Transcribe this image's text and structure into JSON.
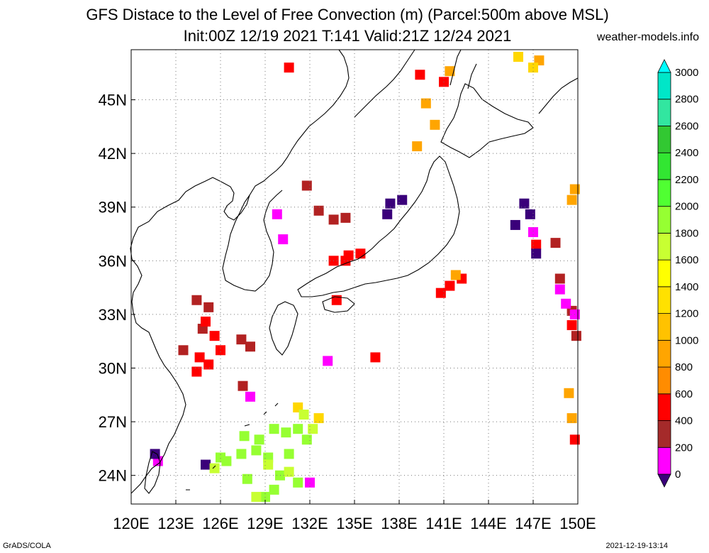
{
  "title_line1": "GFS Distace to the Level of Free Convection (m) (Parcel:500m above MSL)",
  "title_line2": "Init:00Z 12/19 2021 T:141 Valid:21Z 12/24 2021",
  "site": "weather-models.info",
  "footer_left": "GrADS/COLA",
  "footer_right": "2021-12-19-13:14",
  "map": {
    "lon_range": [
      120,
      150
    ],
    "lat_range": [
      22.4,
      47.8
    ],
    "lon_ticks": [
      {
        "value": 120,
        "label": "120E"
      },
      {
        "value": 123,
        "label": "123E"
      },
      {
        "value": 126,
        "label": "126E"
      },
      {
        "value": 129,
        "label": "129E"
      },
      {
        "value": 132,
        "label": "132E"
      },
      {
        "value": 135,
        "label": "135E"
      },
      {
        "value": 138,
        "label": "138E"
      },
      {
        "value": 141,
        "label": "141E"
      },
      {
        "value": 144,
        "label": "144E"
      },
      {
        "value": 147,
        "label": "147E"
      },
      {
        "value": 150,
        "label": "150E"
      }
    ],
    "lat_ticks": [
      {
        "value": 24,
        "label": "24N"
      },
      {
        "value": 27,
        "label": "27N"
      },
      {
        "value": 30,
        "label": "30N"
      },
      {
        "value": 33,
        "label": "33N"
      },
      {
        "value": 36,
        "label": "36N"
      },
      {
        "value": 39,
        "label": "39N"
      },
      {
        "value": 42,
        "label": "42N"
      },
      {
        "value": 45,
        "label": "45N"
      }
    ],
    "grid": true
  },
  "colorbar": {
    "labels": [
      {
        "value": 0,
        "label": "0"
      },
      {
        "value": 200,
        "label": "200"
      },
      {
        "value": 400,
        "label": "400"
      },
      {
        "value": 600,
        "label": "600"
      },
      {
        "value": 800,
        "label": "800"
      },
      {
        "value": 1000,
        "label": "1000"
      },
      {
        "value": 1200,
        "label": "1200"
      },
      {
        "value": 1400,
        "label": "1400"
      },
      {
        "value": 1600,
        "label": "1600"
      },
      {
        "value": 1800,
        "label": "1800"
      },
      {
        "value": 2000,
        "label": "2000"
      },
      {
        "value": 2200,
        "label": "2200"
      },
      {
        "value": 2400,
        "label": "2400"
      },
      {
        "value": 2600,
        "label": "2600"
      },
      {
        "value": 2800,
        "label": "2800"
      },
      {
        "value": 3000,
        "label": "3000"
      }
    ],
    "colors": [
      "#3a007a",
      "#ff00ff",
      "#a52a2a",
      "#ff0000",
      "#ff8c00",
      "#ffa500",
      "#ffc200",
      "#ffe100",
      "#ffff00",
      "#c8ff32",
      "#96ff32",
      "#50ff32",
      "#32e632",
      "#32c832",
      "#32e6a0",
      "#00e6c8",
      "#00ffff"
    ]
  },
  "fields": [
    {
      "name": "dark-red-area",
      "color": "#b22222",
      "cells": [
        [
          124.4,
          33.8
        ],
        [
          125.2,
          33.4
        ],
        [
          124.8,
          32.2
        ],
        [
          123.5,
          31.0
        ],
        [
          127.4,
          31.6
        ],
        [
          128.0,
          31.2
        ],
        [
          131.8,
          40.2
        ],
        [
          132.6,
          38.8
        ],
        [
          133.6,
          38.3
        ],
        [
          134.4,
          38.4
        ],
        [
          148.5,
          37.0
        ],
        [
          148.8,
          35.0
        ],
        [
          149.6,
          33.2
        ],
        [
          149.9,
          31.8
        ],
        [
          127.5,
          29.0
        ]
      ]
    },
    {
      "name": "red-area",
      "color": "#ff0000",
      "cells": [
        [
          125.0,
          32.6
        ],
        [
          125.6,
          31.8
        ],
        [
          124.6,
          30.6
        ],
        [
          126.0,
          31.0
        ],
        [
          124.4,
          29.8
        ],
        [
          125.2,
          30.2
        ],
        [
          133.6,
          36.0
        ],
        [
          134.4,
          36.0
        ],
        [
          135.4,
          36.4
        ],
        [
          134.6,
          36.3
        ],
        [
          140.8,
          34.2
        ],
        [
          141.4,
          34.6
        ],
        [
          142.2,
          35.0
        ],
        [
          130.6,
          46.8
        ],
        [
          139.4,
          46.4
        ],
        [
          147.2,
          36.9
        ],
        [
          149.6,
          32.4
        ],
        [
          136.4,
          30.6
        ],
        [
          149.8,
          26.0
        ],
        [
          133.8,
          33.8
        ],
        [
          141.0,
          46.0
        ]
      ]
    },
    {
      "name": "magenta-area",
      "color": "#ff00ff",
      "cells": [
        [
          129.8,
          38.6
        ],
        [
          130.2,
          37.2
        ],
        [
          147.0,
          37.6
        ],
        [
          148.8,
          34.4
        ],
        [
          149.2,
          33.6
        ],
        [
          149.8,
          33.0
        ],
        [
          128.0,
          28.4
        ],
        [
          133.2,
          30.4
        ],
        [
          121.8,
          24.8
        ],
        [
          132.0,
          23.6
        ]
      ]
    },
    {
      "name": "purple-area",
      "color": "#3a007a",
      "cells": [
        [
          137.4,
          39.2
        ],
        [
          138.2,
          39.4
        ],
        [
          137.2,
          38.6
        ],
        [
          146.4,
          39.2
        ],
        [
          145.8,
          38.0
        ],
        [
          146.8,
          38.6
        ],
        [
          147.2,
          36.4
        ],
        [
          125.0,
          24.6
        ],
        [
          121.6,
          25.2
        ]
      ]
    },
    {
      "name": "orange-area",
      "color": "#ffa500",
      "cells": [
        [
          139.8,
          44.8
        ],
        [
          140.4,
          43.6
        ],
        [
          139.2,
          42.4
        ],
        [
          149.6,
          39.4
        ],
        [
          149.8,
          40.0
        ],
        [
          141.8,
          35.2
        ],
        [
          149.6,
          27.2
        ],
        [
          149.4,
          28.6
        ],
        [
          141.4,
          46.6
        ],
        [
          147.4,
          47.2
        ]
      ]
    },
    {
      "name": "yellow-area",
      "color": "#ffd700",
      "cells": [
        [
          146.0,
          47.4
        ],
        [
          147.0,
          46.8
        ],
        [
          131.2,
          27.8
        ],
        [
          132.6,
          27.2
        ]
      ]
    },
    {
      "name": "green-area",
      "color": "#96ff32",
      "cells": [
        [
          127.6,
          26.2
        ],
        [
          128.6,
          26.0
        ],
        [
          129.6,
          26.6
        ],
        [
          130.4,
          26.4
        ],
        [
          131.2,
          26.6
        ],
        [
          131.8,
          26.0
        ],
        [
          128.4,
          25.4
        ],
        [
          127.4,
          25.2
        ],
        [
          126.4,
          24.8
        ],
        [
          129.2,
          25.0
        ],
        [
          130.6,
          25.2
        ],
        [
          130.0,
          24.0
        ],
        [
          129.6,
          23.2
        ],
        [
          129.0,
          22.8
        ],
        [
          131.2,
          23.6
        ],
        [
          126.0,
          25.0
        ],
        [
          127.8,
          23.8
        ]
      ]
    },
    {
      "name": "lime-area",
      "color": "#c8ff32",
      "cells": [
        [
          125.6,
          24.4
        ],
        [
          128.4,
          22.8
        ],
        [
          129.2,
          24.6
        ],
        [
          130.6,
          24.2
        ],
        [
          132.2,
          26.6
        ],
        [
          131.6,
          27.4
        ]
      ]
    }
  ]
}
